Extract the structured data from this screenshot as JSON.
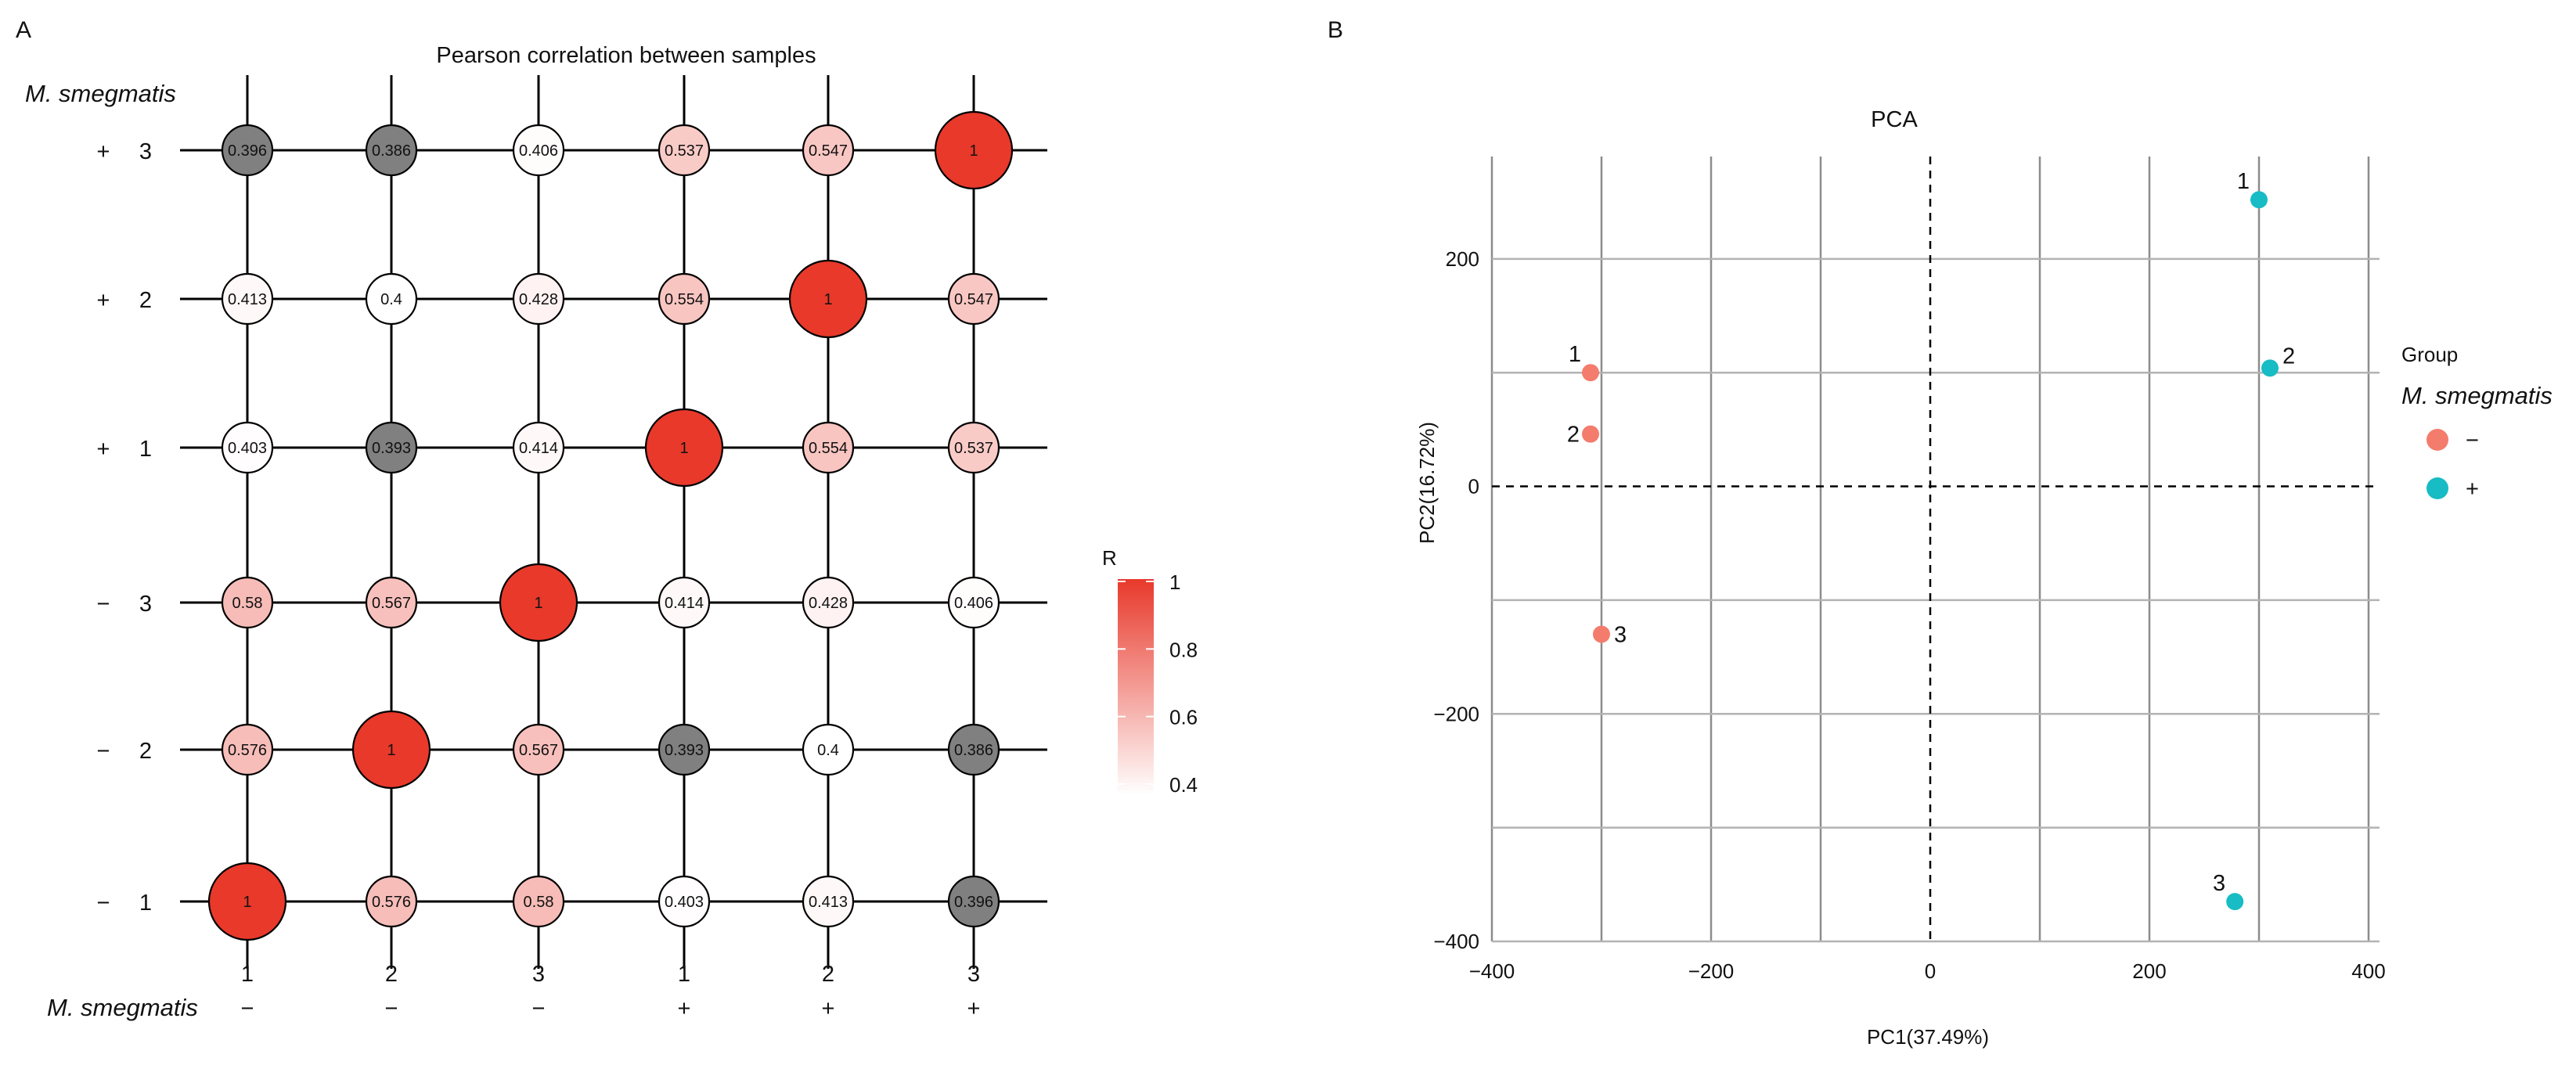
{
  "chart_data": [
    {
      "type": "heatmap",
      "panel": "A",
      "title": "Pearson correlation between samples",
      "row_factor_label": "M. smegmatis",
      "col_factor_label": "M. smegmatis",
      "columns": [
        {
          "replicate": "1",
          "group": "−"
        },
        {
          "replicate": "2",
          "group": "−"
        },
        {
          "replicate": "3",
          "group": "−"
        },
        {
          "replicate": "1",
          "group": "+"
        },
        {
          "replicate": "2",
          "group": "+"
        },
        {
          "replicate": "3",
          "group": "+"
        }
      ],
      "rows": [
        {
          "replicate": "3",
          "group": "+"
        },
        {
          "replicate": "2",
          "group": "+"
        },
        {
          "replicate": "1",
          "group": "+"
        },
        {
          "replicate": "3",
          "group": "−"
        },
        {
          "replicate": "2",
          "group": "−"
        },
        {
          "replicate": "1",
          "group": "−"
        }
      ],
      "values": [
        [
          "0.396",
          "0.386",
          "0.406",
          "0.537",
          "0.547",
          "1"
        ],
        [
          "0.413",
          "0.4",
          "0.428",
          "0.554",
          "1",
          "0.547"
        ],
        [
          "0.403",
          "0.393",
          "0.414",
          "1",
          "0.554",
          "0.537"
        ],
        [
          "0.58",
          "0.567",
          "1",
          "0.414",
          "0.428",
          "0.406"
        ],
        [
          "0.576",
          "1",
          "0.567",
          "0.393",
          "0.4",
          "0.386"
        ],
        [
          "1",
          "0.576",
          "0.58",
          "0.403",
          "0.413",
          "0.396"
        ]
      ],
      "colorbar": {
        "label": "R",
        "ticks": [
          "1",
          "0.8",
          "0.6",
          "0.4"
        ],
        "range": [
          0.4,
          1
        ],
        "low_color": "#ffffff",
        "high_color": "#e8392b",
        "below_range_color": "#808080"
      }
    },
    {
      "type": "scatter",
      "panel": "B",
      "title": "PCA",
      "xlabel": "PC1(37.49%)",
      "ylabel": "PC2(16.72%)",
      "xlim": [
        -400,
        410
      ],
      "ylim": [
        -400,
        290
      ],
      "xticks": [
        -400,
        -200,
        0,
        200,
        400
      ],
      "yticks": [
        -400,
        -200,
        0,
        200
      ],
      "xtick_labels": [
        "−400",
        "−200",
        "0",
        "200",
        "400"
      ],
      "ytick_labels": [
        "−400",
        "−200",
        "0",
        "200"
      ],
      "x_minor_gridlines": [
        -300,
        -100,
        100,
        300
      ],
      "y_minor_gridlines": [
        -300,
        -100,
        100
      ],
      "legend": {
        "title": "Group",
        "subtitle": "M. smegmatis",
        "entries": [
          {
            "label": "−",
            "color": "#f47c6c"
          },
          {
            "label": "+",
            "color": "#17bcc4"
          }
        ]
      },
      "series": [
        {
          "name": "−",
          "color": "#f47c6c",
          "points": [
            {
              "label": "1",
              "x": -310,
              "y": 100
            },
            {
              "label": "2",
              "x": -310,
              "y": 46
            },
            {
              "label": "3",
              "x": -300,
              "y": -130
            }
          ]
        },
        {
          "name": "+",
          "color": "#17bcc4",
          "points": [
            {
              "label": "1",
              "x": 300,
              "y": 252
            },
            {
              "label": "2",
              "x": 310,
              "y": 104
            },
            {
              "label": "3",
              "x": 278,
              "y": -365
            }
          ]
        }
      ]
    }
  ]
}
